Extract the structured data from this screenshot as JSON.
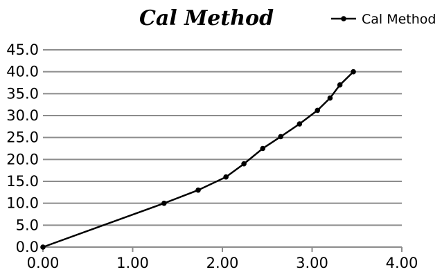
{
  "chart_data": {
    "type": "line",
    "title": "Cal Method",
    "xlabel": "",
    "ylabel": "",
    "xlim": [
      0,
      4
    ],
    "ylim": [
      0,
      45
    ],
    "x_ticks": [
      "0.00",
      "1.00",
      "2.00",
      "3.00",
      "4.00"
    ],
    "y_ticks": [
      "0.0",
      "5.0",
      "10.0",
      "15.0",
      "20.0",
      "25.0",
      "30.0",
      "35.0",
      "40.0",
      "45.0"
    ],
    "grid": true,
    "legend_position": "top-right",
    "series": [
      {
        "name": "Cal Method",
        "color": "#000000",
        "x": [
          0.0,
          1.35,
          1.73,
          2.04,
          2.24,
          2.45,
          2.65,
          2.86,
          3.06,
          3.2,
          3.31,
          3.46
        ],
        "y": [
          0.0,
          10.0,
          13.0,
          16.0,
          19.0,
          22.5,
          25.2,
          28.1,
          31.2,
          34.0,
          37.0,
          40.0
        ]
      }
    ]
  }
}
